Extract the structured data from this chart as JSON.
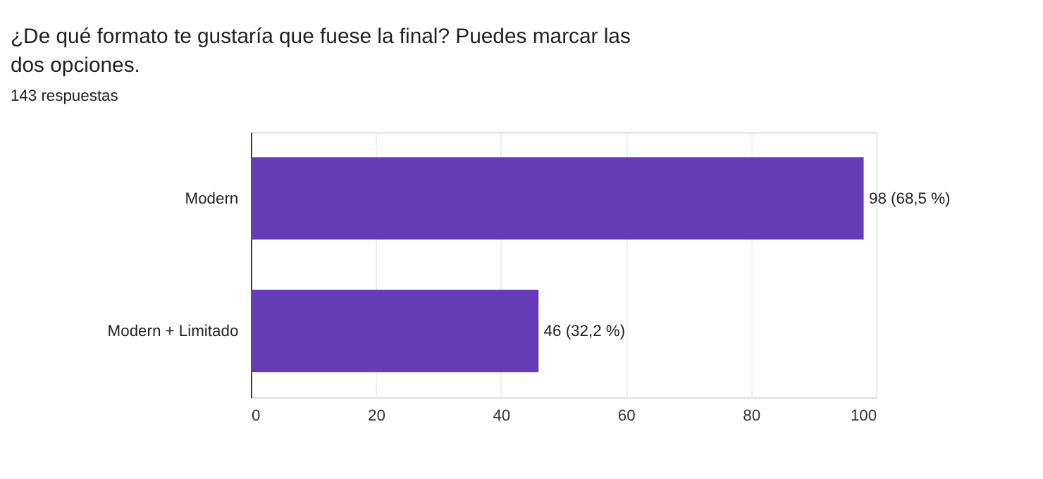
{
  "chart_data": {
    "type": "bar",
    "orientation": "horizontal",
    "title": "¿De qué formato te gustaría que fuese la final? Puedes marcar las dos opciones.",
    "subtitle": "143 respuestas",
    "categories": [
      "Modern",
      "Modern + Limitado"
    ],
    "values": [
      98,
      46
    ],
    "value_labels": [
      "98 (68,5 %)",
      "46 (32,2 %)"
    ],
    "color": "#673ab7",
    "xlim": [
      0,
      100
    ],
    "xticks": [
      0,
      20,
      40,
      60,
      80,
      100
    ],
    "grid": "x"
  }
}
